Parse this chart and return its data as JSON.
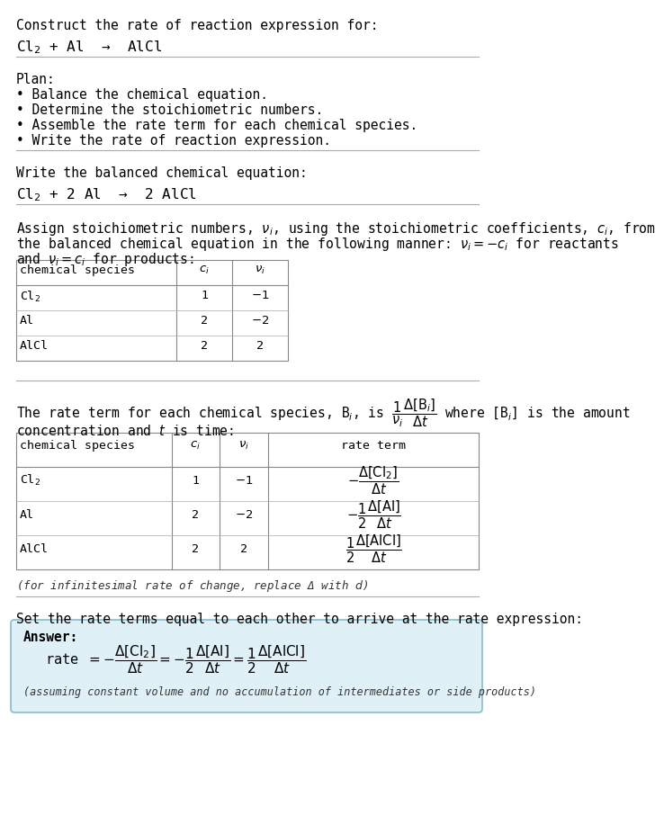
{
  "title_line1": "Construct the rate of reaction expression for:",
  "title_line2": "Cl$_2$ + Al  →  AlCl",
  "plan_header": "Plan:",
  "plan_items": [
    "• Balance the chemical equation.",
    "• Determine the stoichiometric numbers.",
    "• Assemble the rate term for each chemical species.",
    "• Write the rate of reaction expression."
  ],
  "balanced_header": "Write the balanced chemical equation:",
  "balanced_eq": "Cl$_2$ + 2 Al  →  2 AlCl",
  "assign_text1": "Assign stoichiometric numbers, $\\nu_i$, using the stoichiometric coefficients, $c_i$, from",
  "assign_text2": "the balanced chemical equation in the following manner: $\\nu_i = -c_i$ for reactants",
  "assign_text3": "and $\\nu_i = c_i$ for products:",
  "table1_headers": [
    "chemical species",
    "$c_i$",
    "$\\nu_i$"
  ],
  "table1_rows": [
    [
      "Cl$_2$",
      "1",
      "$-1$"
    ],
    [
      "Al",
      "2",
      "$-2$"
    ],
    [
      "AlCl",
      "2",
      "2"
    ]
  ],
  "rate_text1": "The rate term for each chemical species, B$_i$, is $\\dfrac{1}{\\nu_i}\\dfrac{\\Delta[\\mathrm{B}_i]}{\\Delta t}$ where [B$_i$] is the amount",
  "rate_text2": "concentration and $t$ is time:",
  "table2_headers": [
    "chemical species",
    "$c_i$",
    "$\\nu_i$",
    "rate term"
  ],
  "table2_rows": [
    [
      "Cl$_2$",
      "1",
      "$-1$",
      "$-\\dfrac{\\Delta[\\mathrm{Cl_2}]}{\\Delta t}$"
    ],
    [
      "Al",
      "2",
      "$-2$",
      "$-\\dfrac{1}{2}\\dfrac{\\Delta[\\mathrm{Al}]}{\\Delta t}$"
    ],
    [
      "AlCl",
      "2",
      "2",
      "$\\dfrac{1}{2}\\dfrac{\\Delta[\\mathrm{AlCl}]}{\\Delta t}$"
    ]
  ],
  "infinitesimal_note": "(for infinitesimal rate of change, replace Δ with $d$)",
  "set_equal_text": "Set the rate terms equal to each other to arrive at the rate expression:",
  "answer_label": "Answer:",
  "answer_rate": "rate $= -\\dfrac{\\Delta[\\mathrm{Cl_2}]}{\\Delta t} = -\\dfrac{1}{2}\\dfrac{\\Delta[\\mathrm{Al}]}{\\Delta t} = \\dfrac{1}{2}\\dfrac{\\Delta[\\mathrm{AlCl}]}{\\Delta t}$",
  "answer_note": "(assuming constant volume and no accumulation of intermediates or side products)",
  "bg_color": "#ffffff",
  "answer_bg_color": "#dff0f7",
  "answer_border_color": "#88bbcc",
  "text_color": "#000000",
  "mono_font": "DejaVu Sans Mono",
  "font_size": 10.5,
  "small_font_size": 9.5
}
